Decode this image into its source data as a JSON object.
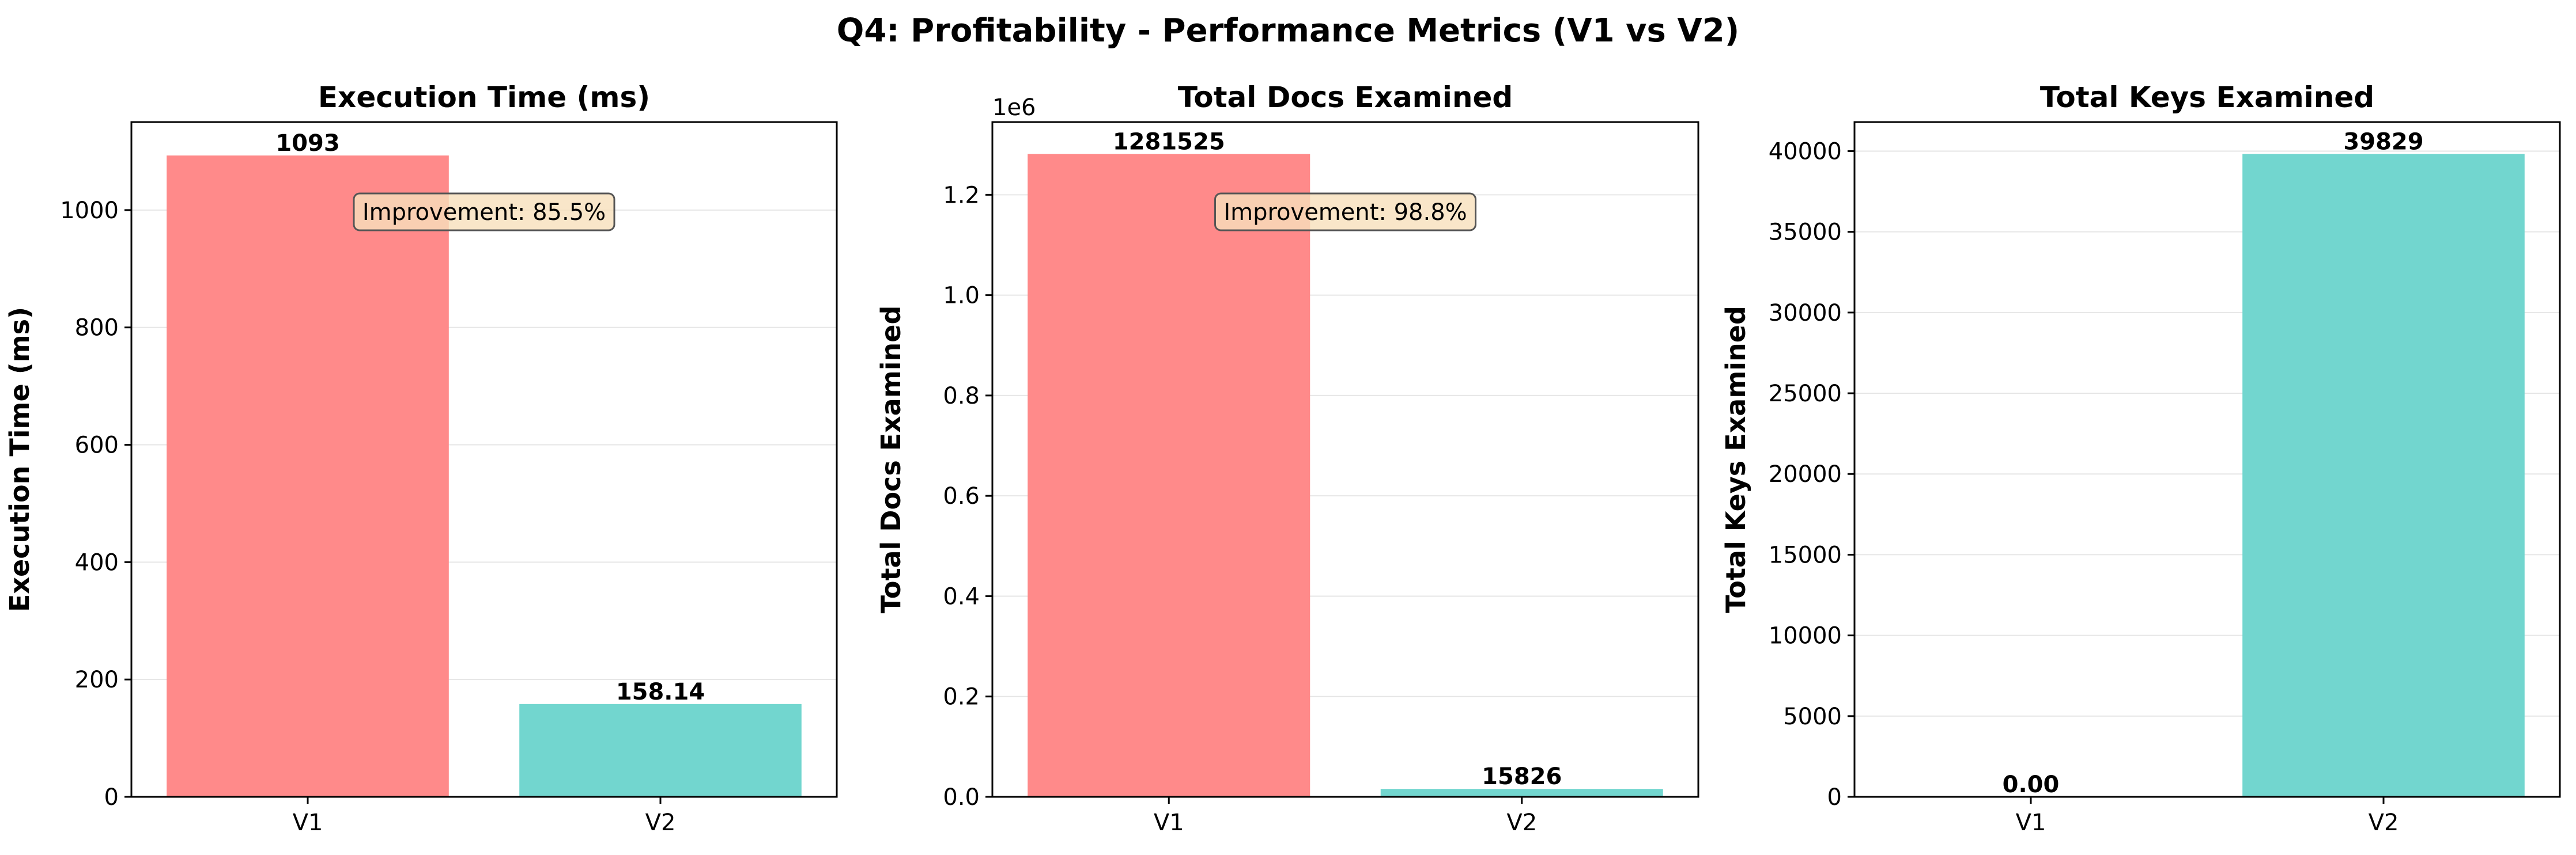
{
  "suptitle": "Q4: Profitability - Performance Metrics (V1 vs V2)",
  "chart_data": [
    {
      "type": "bar",
      "title": "Execution Time (ms)",
      "ylabel": "Execution Time (ms)",
      "categories": [
        "V1",
        "V2"
      ],
      "values": [
        1093,
        158.14
      ],
      "value_labels": [
        "1093",
        "158.14"
      ],
      "colors": [
        "#ff8a8a",
        "#72d6cf"
      ],
      "ylim": [
        0,
        1150
      ],
      "yticks": [
        0,
        200,
        400,
        600,
        800,
        1000
      ],
      "ytick_labels": [
        "0",
        "200",
        "400",
        "600",
        "800",
        "1000"
      ],
      "offset_text": "",
      "annotation": "Improvement: 85.5%",
      "grid": "y"
    },
    {
      "type": "bar",
      "title": "Total Docs Examined",
      "ylabel": "Total Docs Examined",
      "categories": [
        "V1",
        "V2"
      ],
      "values": [
        1281525,
        15826
      ],
      "value_labels": [
        "1281525",
        "15826"
      ],
      "colors": [
        "#ff8a8a",
        "#72d6cf"
      ],
      "ylim": [
        0,
        1345000
      ],
      "yticks": [
        0,
        200000,
        400000,
        600000,
        800000,
        1000000,
        1200000
      ],
      "ytick_labels": [
        "0.0",
        "0.2",
        "0.4",
        "0.6",
        "0.8",
        "1.0",
        "1.2"
      ],
      "offset_text": "1e6",
      "annotation": "Improvement: 98.8%",
      "grid": "y"
    },
    {
      "type": "bar",
      "title": "Total Keys Examined",
      "ylabel": "Total Keys Examined",
      "categories": [
        "V1",
        "V2"
      ],
      "values": [
        0,
        39829
      ],
      "value_labels": [
        "0.00",
        "39829"
      ],
      "colors": [
        "#ff8a8a",
        "#72d6cf"
      ],
      "ylim": [
        0,
        41800
      ],
      "yticks": [
        0,
        5000,
        10000,
        15000,
        20000,
        25000,
        30000,
        35000,
        40000
      ],
      "ytick_labels": [
        "0",
        "5000",
        "10000",
        "15000",
        "20000",
        "25000",
        "30000",
        "35000",
        "40000"
      ],
      "offset_text": "",
      "annotation": "",
      "grid": "y"
    }
  ]
}
